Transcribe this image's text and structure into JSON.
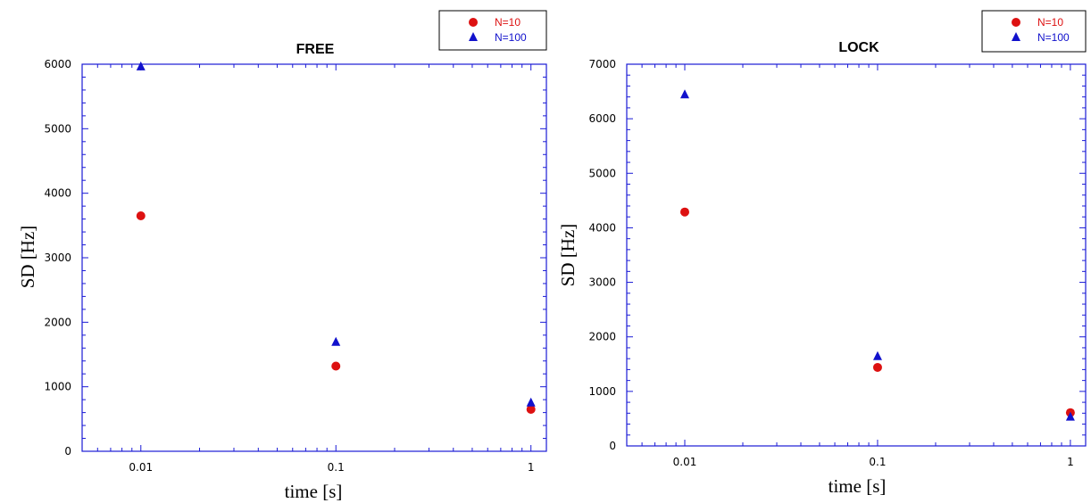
{
  "chart_data": [
    {
      "type": "scatter",
      "title": "FREE",
      "xlabel": "time [s]",
      "ylabel": "SD [Hz]",
      "xscale": "log",
      "xlim": [
        0.005,
        1.2
      ],
      "ylim": [
        0,
        6000
      ],
      "xticks": [
        0.01,
        0.1,
        1
      ],
      "xtick_labels": [
        "0.01",
        "0.1",
        "1"
      ],
      "yticks": [
        0,
        1000,
        2000,
        3000,
        4000,
        5000,
        6000
      ],
      "ytick_labels": [
        "0",
        "1000",
        "2000",
        "3000",
        "4000",
        "5000",
        "6000"
      ],
      "grid": false,
      "legend_position": "top-right, outside plot area",
      "series": [
        {
          "name": "N=10",
          "marker": "circle",
          "color": "#dd1111",
          "x": [
            0.01,
            0.1,
            1
          ],
          "y": [
            3650,
            1320,
            650
          ]
        },
        {
          "name": "N=100",
          "marker": "triangle",
          "color": "#1111cc",
          "x": [
            0.01,
            0.1,
            1
          ],
          "y": [
            5960,
            1690,
            750
          ]
        }
      ]
    },
    {
      "type": "scatter",
      "title": "LOCK",
      "xlabel": "time [s]",
      "ylabel": "SD [Hz]",
      "xscale": "log",
      "xlim": [
        0.005,
        1.2
      ],
      "ylim": [
        0,
        7000
      ],
      "xticks": [
        0.01,
        0.1,
        1
      ],
      "xtick_labels": [
        "0.01",
        "0.1",
        "1"
      ],
      "yticks": [
        0,
        1000,
        2000,
        3000,
        4000,
        5000,
        6000,
        7000
      ],
      "ytick_labels": [
        "0",
        "1000",
        "2000",
        "3000",
        "4000",
        "5000",
        "6000",
        "7000"
      ],
      "grid": false,
      "legend_position": "top-right, outside plot area",
      "series": [
        {
          "name": "N=10",
          "marker": "circle",
          "color": "#dd1111",
          "x": [
            0.01,
            0.1,
            1
          ],
          "y": [
            4290,
            1440,
            610
          ]
        },
        {
          "name": "N=100",
          "marker": "triangle",
          "color": "#1111cc",
          "x": [
            0.01,
            0.1,
            1
          ],
          "y": [
            6440,
            1640,
            530
          ]
        }
      ]
    }
  ]
}
